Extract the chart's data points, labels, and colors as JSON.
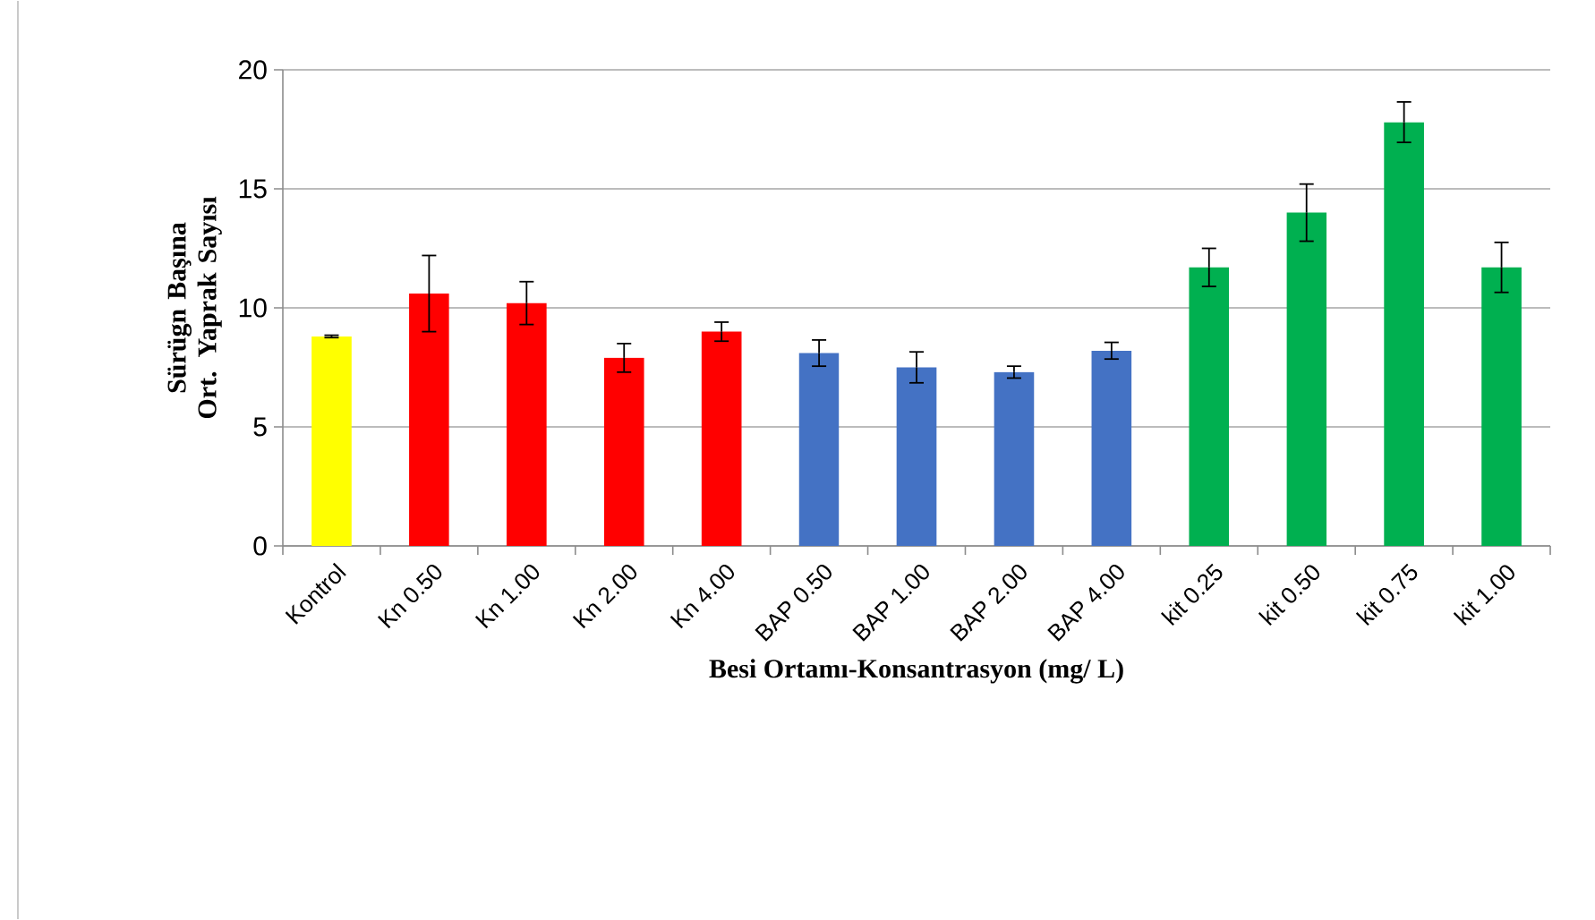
{
  "chart_data": {
    "type": "bar",
    "xlabel": "Besi Ortamı-Konsantrasyon (mg/ L)",
    "ylabel": "Sürügn Başına Ort. Yaprak Sayısı",
    "categories": [
      "Kontrol",
      "Kn 0.50",
      "Kn 1.00",
      "Kn 2.00",
      "Kn 4.00",
      "BAP 0.50",
      "BAP 1.00",
      "BAP 2.00",
      "BAP 4.00",
      "kit 0.25",
      "kit 0.50",
      "kit 0.75",
      "kit 1.00"
    ],
    "values": [
      8.8,
      10.6,
      10.2,
      7.9,
      9.0,
      8.1,
      7.5,
      7.3,
      8.2,
      11.7,
      14.0,
      17.8,
      11.7
    ],
    "errors": [
      0.05,
      1.6,
      0.9,
      0.6,
      0.4,
      0.55,
      0.65,
      0.25,
      0.35,
      0.8,
      1.2,
      0.85,
      1.05
    ],
    "colors": [
      "#ffff00",
      "#ff0000",
      "#ff0000",
      "#ff0000",
      "#ff0000",
      "#4472c4",
      "#4472c4",
      "#4472c4",
      "#4472c4",
      "#00b050",
      "#00b050",
      "#00b050",
      "#00b050"
    ],
    "ylim": [
      0,
      20
    ],
    "yticks": [
      0,
      5,
      10,
      15,
      20
    ],
    "grid": "y"
  }
}
